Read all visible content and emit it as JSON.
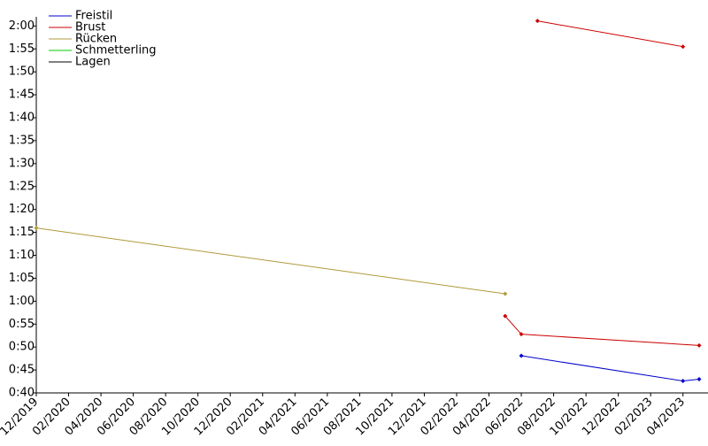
{
  "chart_data": {
    "type": "line",
    "xlim": [
      "12/2019",
      "05/2023"
    ],
    "xticks": [
      "12/2019",
      "02/2020",
      "04/2020",
      "06/2020",
      "08/2020",
      "10/2020",
      "12/2020",
      "02/2021",
      "04/2021",
      "06/2021",
      "08/2021",
      "10/2021",
      "12/2021",
      "02/2022",
      "04/2022",
      "06/2022",
      "08/2022",
      "10/2022",
      "12/2022",
      "02/2023",
      "04/2023"
    ],
    "ylim": [
      40,
      122
    ],
    "yticks": [
      {
        "value": 40,
        "label": "0:40"
      },
      {
        "value": 45,
        "label": "0:45"
      },
      {
        "value": 50,
        "label": "0:50"
      },
      {
        "value": 55,
        "label": "0:55"
      },
      {
        "value": 60,
        "label": "1:00"
      },
      {
        "value": 65,
        "label": "1:05"
      },
      {
        "value": 70,
        "label": "1:10"
      },
      {
        "value": 75,
        "label": "1:15"
      },
      {
        "value": 80,
        "label": "1:20"
      },
      {
        "value": 85,
        "label": "1:25"
      },
      {
        "value": 90,
        "label": "1:30"
      },
      {
        "value": 95,
        "label": "1:35"
      },
      {
        "value": 100,
        "label": "1:40"
      },
      {
        "value": 105,
        "label": "1:45"
      },
      {
        "value": 110,
        "label": "1:50"
      },
      {
        "value": 115,
        "label": "1:55"
      },
      {
        "value": 120,
        "label": "2:00"
      }
    ],
    "legend": "upper left",
    "series": [
      {
        "name": "Freistil",
        "color": "#0000cc",
        "x": [
          "06/2022",
          "04/2023",
          "05/2023"
        ],
        "values": [
          48.1,
          42.6,
          43
        ]
      },
      {
        "name": "Brust",
        "color": "#cc0000",
        "x": [
          "05/2022",
          "06/2022",
          "05/2023",
          null,
          "07/2022",
          "04/2023"
        ],
        "values": [
          56.75,
          52.8,
          50.35,
          null,
          121.1,
          115.5
        ]
      },
      {
        "name": "Rücken",
        "color": "#b09a3a",
        "x": [
          "12/2019",
          "05/2022"
        ],
        "values": [
          75.95,
          61.6
        ]
      },
      {
        "name": "Schmetterling",
        "color": "#00cc00",
        "x": [],
        "values": []
      },
      {
        "name": "Lagen",
        "color": "#000000",
        "x": [],
        "values": []
      }
    ]
  }
}
